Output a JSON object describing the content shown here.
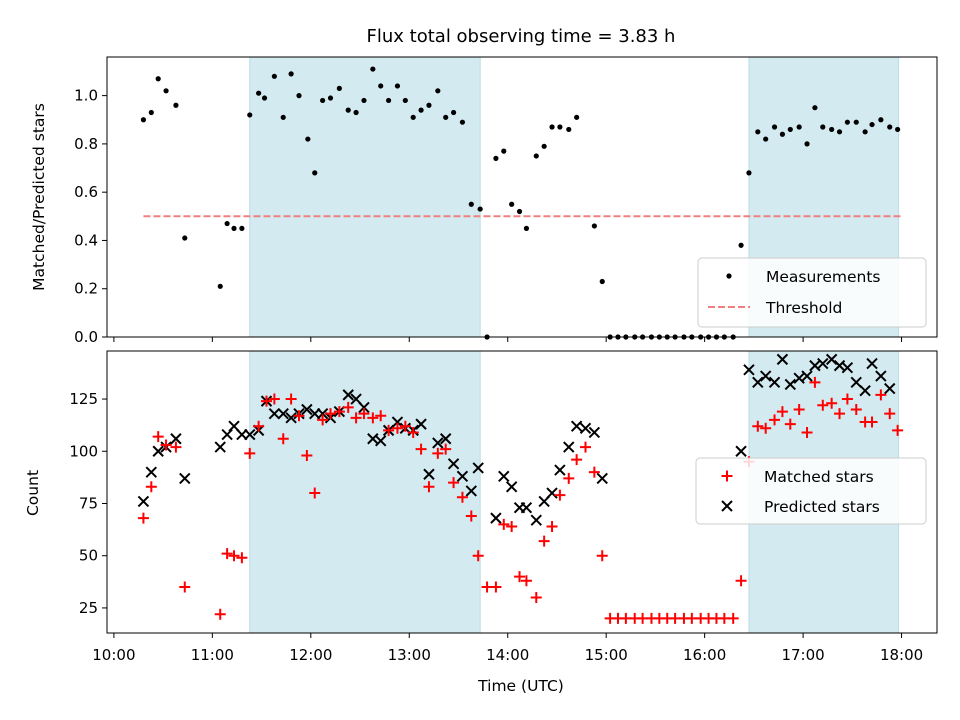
{
  "chart_data": {
    "type": "scatter",
    "title": "Flux total observing time = 3.83 h",
    "xlabel": "Time (UTC)",
    "x_ticks": [
      "10:00",
      "11:00",
      "12:00",
      "13:00",
      "14:00",
      "15:00",
      "16:00",
      "17:00",
      "18:00"
    ],
    "x_tick_hours": [
      10,
      11,
      12,
      13,
      14,
      15,
      16,
      17,
      18
    ],
    "xlim_hours": [
      9.93,
      18.36
    ],
    "shaded_intervals_hours": [
      [
        11.38,
        13.72
      ],
      [
        16.45,
        17.97
      ]
    ],
    "shade_color": "#d4eaf1",
    "top_panel": {
      "ylabel": "Matched/Predicted stars",
      "ylim": [
        0,
        1.16
      ],
      "yticks": [
        0.0,
        0.2,
        0.4,
        0.6,
        0.8,
        1.0
      ],
      "ytick_labels": [
        "0.0",
        "0.2",
        "0.4",
        "0.6",
        "0.8",
        "1.0"
      ],
      "legend_position": "lower-right",
      "threshold": {
        "name": "Threshold",
        "value": 0.5,
        "x_start_hours": 10.3,
        "x_end_hours": 18.0,
        "color": "#f08080"
      },
      "measurements": {
        "name": "Measurements",
        "color": "#000000",
        "x_hours": [
          10.3,
          10.38,
          10.45,
          10.53,
          10.63,
          10.72,
          11.08,
          11.15,
          11.22,
          11.3,
          11.38,
          11.47,
          11.53,
          11.63,
          11.72,
          11.8,
          11.88,
          11.97,
          12.04,
          12.12,
          12.2,
          12.29,
          12.38,
          12.46,
          12.54,
          12.63,
          12.71,
          12.79,
          12.88,
          12.96,
          13.04,
          13.12,
          13.2,
          13.29,
          13.37,
          13.45,
          13.54,
          13.63,
          13.72,
          13.79,
          13.88,
          13.96,
          14.04,
          14.12,
          14.19,
          14.29,
          14.37,
          14.45,
          14.53,
          14.62,
          14.7,
          14.88,
          14.96,
          15.04,
          15.12,
          15.2,
          15.29,
          15.37,
          15.46,
          15.54,
          15.62,
          15.7,
          15.79,
          15.87,
          15.96,
          16.04,
          16.12,
          16.2,
          16.29,
          16.37,
          16.45,
          16.54,
          16.62,
          16.71,
          16.79,
          16.87,
          16.96,
          17.04,
          17.12,
          17.2,
          17.29,
          17.37,
          17.45,
          17.54,
          17.63,
          17.7,
          17.79,
          17.88,
          17.96
        ],
        "values": [
          0.9,
          0.93,
          1.07,
          1.02,
          0.96,
          0.41,
          0.21,
          0.47,
          0.45,
          0.45,
          0.92,
          1.01,
          0.99,
          1.08,
          0.91,
          1.09,
          1.0,
          0.82,
          0.68,
          0.98,
          0.99,
          1.03,
          0.94,
          0.93,
          0.98,
          1.11,
          1.04,
          0.98,
          1.04,
          0.98,
          0.91,
          0.94,
          0.96,
          1.02,
          0.91,
          0.93,
          0.89,
          0.55,
          0.53,
          0.0,
          0.74,
          0.77,
          0.55,
          0.52,
          0.45,
          0.75,
          0.79,
          0.87,
          0.87,
          0.86,
          0.91,
          0.46,
          0.23,
          0.0,
          0.0,
          0.0,
          0.0,
          0.0,
          0.0,
          0.0,
          0.0,
          0.0,
          0.0,
          0.0,
          0.0,
          0.0,
          0.0,
          0.0,
          0.0,
          0.38,
          0.68,
          0.85,
          0.82,
          0.87,
          0.84,
          0.86,
          0.87,
          0.8,
          0.95,
          0.87,
          0.86,
          0.85,
          0.89,
          0.89,
          0.85,
          0.88,
          0.9,
          0.87,
          0.86
        ]
      }
    },
    "bottom_panel": {
      "ylabel": "Count",
      "ylim": [
        13,
        148
      ],
      "yticks": [
        25,
        50,
        75,
        100,
        125
      ],
      "ytick_labels": [
        "25",
        "50",
        "75",
        "100",
        "125"
      ],
      "legend_position": "right",
      "series": [
        {
          "name": "Matched stars",
          "marker": "plus",
          "color": "#ff0000",
          "x_hours": [
            10.3,
            10.38,
            10.45,
            10.53,
            10.63,
            10.72,
            11.08,
            11.15,
            11.22,
            11.3,
            11.38,
            11.47,
            11.55,
            11.63,
            11.72,
            11.8,
            11.88,
            11.96,
            12.04,
            12.12,
            12.2,
            12.29,
            12.38,
            12.46,
            12.54,
            12.63,
            12.71,
            12.79,
            12.88,
            12.96,
            13.04,
            13.12,
            13.2,
            13.29,
            13.37,
            13.45,
            13.54,
            13.63,
            13.7,
            13.79,
            13.88,
            13.96,
            14.04,
            14.12,
            14.19,
            14.29,
            14.37,
            14.45,
            14.53,
            14.62,
            14.7,
            14.79,
            14.88,
            14.96,
            15.04,
            15.12,
            15.2,
            15.29,
            15.37,
            15.46,
            15.54,
            15.62,
            15.7,
            15.79,
            15.87,
            15.96,
            16.04,
            16.12,
            16.2,
            16.29,
            16.37,
            16.45,
            16.54,
            16.62,
            16.71,
            16.79,
            16.87,
            16.96,
            17.04,
            17.12,
            17.2,
            17.29,
            17.37,
            17.45,
            17.54,
            17.63,
            17.7,
            17.79,
            17.88,
            17.96
          ],
          "values": [
            68,
            83,
            107,
            103,
            102,
            35,
            22,
            51,
            50,
            49,
            99,
            112,
            124,
            125,
            106,
            125,
            117,
            98,
            80,
            115,
            118,
            119,
            121,
            116,
            118,
            116,
            117,
            110,
            111,
            112,
            109,
            101,
            83,
            99,
            101,
            85,
            78,
            69,
            50,
            35,
            35,
            65,
            64,
            40,
            38,
            30,
            57,
            64,
            79,
            87,
            96,
            102,
            90,
            50,
            20,
            20,
            20,
            20,
            20,
            20,
            20,
            20,
            20,
            20,
            20,
            20,
            20,
            20,
            20,
            20,
            38,
            95,
            112,
            111,
            115,
            119,
            113,
            120,
            109,
            133,
            122,
            123,
            118,
            125,
            120,
            114,
            114,
            127,
            118,
            110
          ]
        },
        {
          "name": "Predicted stars",
          "marker": "x",
          "color": "#000000",
          "x_hours": [
            10.3,
            10.38,
            10.45,
            10.53,
            10.63,
            10.72,
            11.08,
            11.15,
            11.22,
            11.3,
            11.38,
            11.47,
            11.55,
            11.63,
            11.72,
            11.8,
            11.88,
            11.96,
            12.04,
            12.12,
            12.2,
            12.29,
            12.38,
            12.46,
            12.54,
            12.63,
            12.71,
            12.79,
            12.88,
            12.96,
            13.04,
            13.12,
            13.2,
            13.29,
            13.37,
            13.45,
            13.54,
            13.63,
            13.7,
            13.88,
            13.96,
            14.04,
            14.12,
            14.19,
            14.29,
            14.37,
            14.45,
            14.53,
            14.62,
            14.7,
            14.79,
            14.88,
            14.96,
            16.37,
            16.45,
            16.54,
            16.62,
            16.71,
            16.79,
            16.87,
            16.96,
            17.04,
            17.12,
            17.2,
            17.29,
            17.37,
            17.45,
            17.54,
            17.63,
            17.7,
            17.79,
            17.88,
            17.96
          ],
          "values": [
            76,
            90,
            100,
            102,
            106,
            87,
            102,
            108,
            112,
            108,
            108,
            110,
            124,
            118,
            118,
            116,
            118,
            120,
            118,
            118,
            116,
            119,
            127,
            125,
            121,
            106,
            105,
            110,
            114,
            111,
            110,
            113,
            89,
            104,
            106,
            94,
            88,
            81,
            92,
            68,
            88,
            83,
            73,
            73,
            67,
            76,
            80,
            91,
            102,
            112,
            111,
            109,
            87,
            100,
            139,
            133,
            136,
            133,
            144,
            132,
            135,
            136,
            141,
            142,
            144,
            141,
            140,
            133,
            129,
            142,
            136,
            130
          ]
        }
      ]
    }
  }
}
